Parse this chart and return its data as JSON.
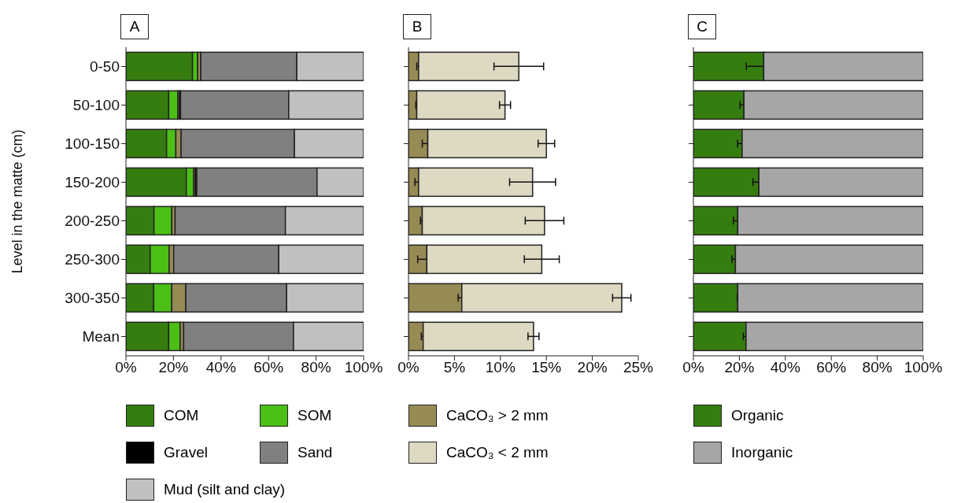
{
  "chart_data": [
    {
      "type": "bar",
      "title": "A",
      "orientation": "horizontal",
      "stacked": true,
      "ylabel": "Level in the matte (cm)",
      "legend": "bottom",
      "categories": [
        "0-50",
        "50-100",
        "100-150",
        "150-200",
        "200-250",
        "250-300",
        "300-350",
        "Mean"
      ],
      "series": [
        {
          "name": "COM",
          "color": "#367d10",
          "values": [
            28.0,
            18.0,
            17.1,
            25.4,
            11.8,
            10.2,
            11.7,
            18.0
          ]
        },
        {
          "name": "SOM",
          "color": "#4cbf17",
          "values": [
            2.2,
            3.8,
            3.9,
            3.0,
            7.5,
            8.0,
            7.6,
            4.8
          ]
        },
        {
          "color": "#978b55",
          "values": [
            1.3,
            0.6,
            2.2,
            0.7,
            1.4,
            1.9,
            5.9,
            1.5
          ]
        },
        {
          "name": "Gravel",
          "color": "#000000",
          "values": [
            0,
            0.6,
            0,
            0.7,
            0,
            0,
            0,
            0
          ]
        },
        {
          "name": "Sand",
          "color": "#808080",
          "values": [
            40.4,
            45.5,
            47.7,
            50.6,
            46.4,
            44.2,
            42.4,
            46.2
          ]
        },
        {
          "name": "Mud (silt and clay)",
          "color": "#c0c0c0",
          "values": [
            28.1,
            31.5,
            29.1,
            19.6,
            32.9,
            35.7,
            32.4,
            29.5
          ]
        }
      ],
      "xlim": [
        0,
        100
      ],
      "xticks": [
        {
          "value": 0,
          "label": "0%"
        },
        {
          "value": 20,
          "label": "20%"
        },
        {
          "value": 40,
          "label": "40%"
        },
        {
          "value": 60,
          "label": "60%"
        },
        {
          "value": 80,
          "label": "80%"
        },
        {
          "value": 100,
          "label": "100%"
        }
      ]
    },
    {
      "type": "bar",
      "title": "B",
      "orientation": "horizontal",
      "stacked": true,
      "legend": "bottom",
      "tick_labels": "x",
      "categories": [
        null,
        null,
        null,
        null,
        null,
        null,
        null,
        null
      ],
      "series": [
        {
          "name": "CaCO₃ > 2 mm",
          "color": "#978b55",
          "values": [
            1.1,
            0.9,
            2.1,
            1.1,
            1.5,
            2.0,
            5.8,
            1.6
          ],
          "errors": [
            0.2,
            0.1,
            0.6,
            0.4,
            0.2,
            1.0,
            0.4,
            0.2
          ]
        },
        {
          "name": "CaCO₃ < 2 mm",
          "color": "#ddd9c3",
          "values": [
            10.9,
            9.6,
            12.9,
            12.4,
            13.3,
            12.5,
            17.4,
            12.0
          ],
          "errors": [
            2.7,
            0.6,
            0.9,
            2.5,
            2.1,
            1.9,
            1.0,
            0.6
          ]
        }
      ],
      "xlim": [
        0,
        25
      ],
      "xticks": [
        {
          "value": 0,
          "label": "0%"
        },
        {
          "value": 5,
          "label": "5%"
        },
        {
          "value": 10,
          "label": "10%"
        },
        {
          "value": 15,
          "label": "15%"
        },
        {
          "value": 20,
          "label": "20%"
        },
        {
          "value": 25,
          "label": "25%"
        }
      ]
    },
    {
      "type": "bar",
      "title": "C",
      "orientation": "horizontal",
      "stacked": true,
      "legend": "bottom",
      "tick_labels": "x",
      "categories": [
        null,
        null,
        null,
        null,
        null,
        null,
        null,
        null
      ],
      "series": [
        {
          "name": "Organic",
          "color": "#367d10",
          "values": [
            30.6,
            22.0,
            21.2,
            28.5,
            19.3,
            18.3,
            19.3,
            22.9
          ],
          "errors": [
            7.6,
            1.8,
            2.0,
            2.6,
            1.9,
            1.5,
            0.2,
            1.2
          ]
        },
        {
          "name": "Inorganic",
          "color": "#a6a6a6",
          "values": [
            69.4,
            78.0,
            78.8,
            71.5,
            80.7,
            81.7,
            80.7,
            77.1
          ]
        }
      ],
      "xlim": [
        0,
        100
      ],
      "xticks": [
        {
          "value": 0,
          "label": "0%"
        },
        {
          "value": 20,
          "label": "20%"
        },
        {
          "value": 40,
          "label": "40%"
        },
        {
          "value": 60,
          "label": "60%"
        },
        {
          "value": 80,
          "label": "80%"
        },
        {
          "value": 100,
          "label": "100%"
        }
      ]
    }
  ]
}
